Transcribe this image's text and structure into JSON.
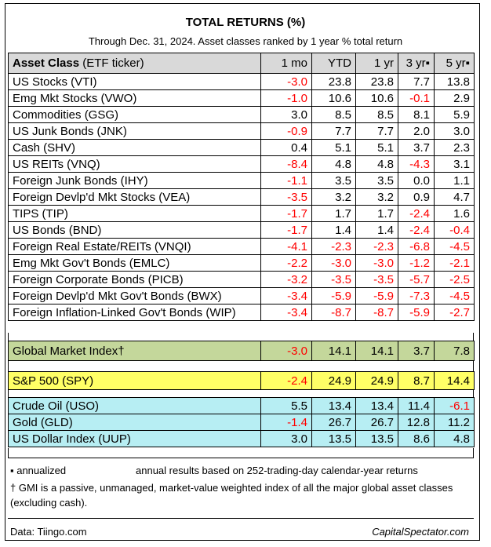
{
  "title": "TOTAL RETURNS (%)",
  "subtitle": "Through Dec. 31, 2024. Asset classes ranked by 1 year % total return",
  "header": {
    "asset_class": "Asset Class",
    "ticker": "(ETF ticker)",
    "cols": [
      "1 mo",
      "YTD",
      "1 yr",
      "3 yr▪",
      "5 yr▪"
    ]
  },
  "rows": [
    {
      "name": "US Stocks (VTI)",
      "vals": [
        "-3.0",
        "23.8",
        "23.8",
        "7.7",
        "13.8"
      ]
    },
    {
      "name": "Emg Mkt Stocks (VWO)",
      "vals": [
        "-1.0",
        "10.6",
        "10.6",
        "-0.1",
        "2.9"
      ]
    },
    {
      "name": "Commodities (GSG)",
      "vals": [
        "3.0",
        "8.5",
        "8.5",
        "8.1",
        "5.9"
      ]
    },
    {
      "name": "US Junk Bonds (JNK)",
      "vals": [
        "-0.9",
        "7.7",
        "7.7",
        "2.0",
        "3.0"
      ]
    },
    {
      "name": "Cash (SHV)",
      "vals": [
        "0.4",
        "5.1",
        "5.1",
        "3.7",
        "2.3"
      ]
    },
    {
      "name": "US REITs (VNQ)",
      "vals": [
        "-8.4",
        "4.8",
        "4.8",
        "-4.3",
        "3.1"
      ]
    },
    {
      "name": "Foreign Junk Bonds (IHY)",
      "vals": [
        "-1.1",
        "3.5",
        "3.5",
        "0.0",
        "1.1"
      ]
    },
    {
      "name": "Foreign Devlp'd Mkt Stocks (VEA)",
      "vals": [
        "-3.5",
        "3.2",
        "3.2",
        "0.9",
        "4.7"
      ]
    },
    {
      "name": "TIPS (TIP)",
      "vals": [
        "-1.7",
        "1.7",
        "1.7",
        "-2.4",
        "1.6"
      ]
    },
    {
      "name": "US Bonds (BND)",
      "vals": [
        "-1.7",
        "1.4",
        "1.4",
        "-2.4",
        "-0.4"
      ]
    },
    {
      "name": "Foreign Real Estate/REITs (VNQI)",
      "vals": [
        "-4.1",
        "-2.3",
        "-2.3",
        "-6.8",
        "-4.5"
      ]
    },
    {
      "name": "Emg Mkt Gov't Bonds (EMLC)",
      "vals": [
        "-2.2",
        "-3.0",
        "-3.0",
        "-1.2",
        "-2.1"
      ]
    },
    {
      "name": "Foreign Corporate Bonds (PICB)",
      "vals": [
        "-3.2",
        "-3.5",
        "-3.5",
        "-5.7",
        "-2.5"
      ]
    },
    {
      "name": "Foreign Devlp'd Mkt Gov't Bonds (BWX)",
      "vals": [
        "-3.4",
        "-5.9",
        "-5.9",
        "-7.3",
        "-4.5"
      ]
    },
    {
      "name": "Foreign Inflation-Linked Gov't Bonds (WIP)",
      "vals": [
        "-3.4",
        "-8.7",
        "-8.7",
        "-5.9",
        "-2.7"
      ]
    }
  ],
  "gmi": {
    "name": "Global Market Index†",
    "vals": [
      "-3.0",
      "14.1",
      "14.1",
      "3.7",
      "7.8"
    ]
  },
  "spy": {
    "name": "S&P 500 (SPY)",
    "vals": [
      "-2.4",
      "24.9",
      "24.9",
      "8.7",
      "14.4"
    ]
  },
  "extras": [
    {
      "name": "Crude Oil (USO)",
      "vals": [
        "5.5",
        "13.4",
        "13.4",
        "11.4",
        "-6.1"
      ]
    },
    {
      "name": "Gold (GLD)",
      "vals": [
        "-1.4",
        "26.7",
        "26.7",
        "12.8",
        "11.2"
      ]
    },
    {
      "name": "US Dollar Index (UUP)",
      "vals": [
        "3.0",
        "13.5",
        "13.5",
        "8.6",
        "4.8"
      ]
    }
  ],
  "notes": {
    "annualized_label": "▪ annualized",
    "annualized_text": "annual results based on 252-trading-day calendar-year returns",
    "gmi_note": "† GMI is a passive, unmanaged, market-value weighted index of all the major global asset classes (excluding cash).",
    "source": "Data: Tiingo.com",
    "site": "CapitalSpectator.com"
  },
  "colors": {
    "negative": "#ff0000",
    "header_bg": "#d9d9d9",
    "gmi_bg": "#c4d79b",
    "spy_bg": "#ffff66",
    "extras_bg": "#b7eef3"
  }
}
